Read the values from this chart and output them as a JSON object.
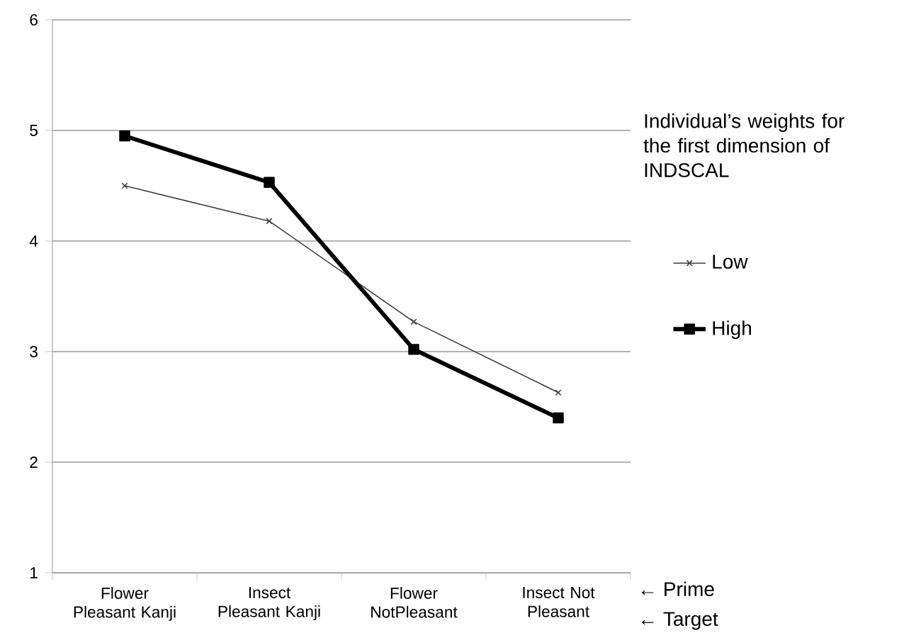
{
  "chart_data": {
    "type": "line",
    "categories": [
      "Flower Pleasant Kanji",
      "Insect Pleasant Kanji",
      "Flower NotPleasant",
      "Insect Not Pleasant"
    ],
    "series": [
      {
        "name": "Low",
        "color": "#404040",
        "values": [
          4.5,
          4.18,
          3.27,
          2.63
        ],
        "marker": "cross"
      },
      {
        "name": "High",
        "color": "#000000",
        "values": [
          4.95,
          4.53,
          3.02,
          2.4
        ],
        "marker": "square"
      }
    ],
    "ylim": [
      1,
      6
    ],
    "yticks": [
      1,
      2,
      3,
      4,
      5,
      6
    ],
    "grid": "y",
    "legend": "right",
    "legend_title": "Individual’s weights for the first dimension of INDSCAL",
    "annotations": [
      "← Prime",
      "← Target"
    ]
  }
}
